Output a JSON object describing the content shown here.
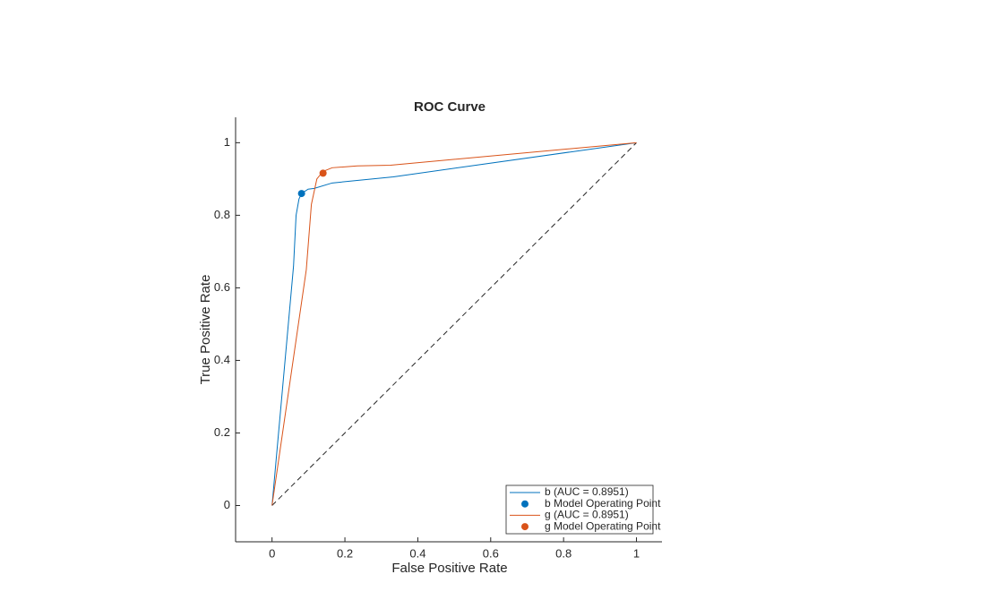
{
  "chart_data": {
    "type": "line",
    "title": "ROC Curve",
    "x_label": "False Positive Rate",
    "y_label": "True Positive Rate",
    "xlim": [
      -0.1,
      1.07
    ],
    "ylim": [
      -0.1,
      1.07
    ],
    "xticks": [
      0,
      0.2,
      0.4,
      0.6,
      0.8,
      1
    ],
    "yticks": [
      0,
      0.2,
      0.4,
      0.6,
      0.8,
      1
    ],
    "legend": "southeast",
    "series": [
      {
        "name": "b (AUC = 0.8951)",
        "color": "#0072bd",
        "x": [
          0,
          0.059,
          0.066,
          0.074,
          0.081,
          0.099,
          0.116,
          0.165,
          0.333,
          1
        ],
        "y": [
          0,
          0.66,
          0.8,
          0.845,
          0.86,
          0.872,
          0.874,
          0.889,
          0.906,
          1
        ]
      },
      {
        "name": "g (AUC = 0.8951)",
        "color": "#d95319",
        "x": [
          0,
          0.094,
          0.108,
          0.123,
          0.14,
          0.165,
          0.234,
          0.325,
          1
        ],
        "y": [
          0,
          0.65,
          0.83,
          0.9,
          0.921,
          0.931,
          0.936,
          0.938,
          1
        ]
      }
    ],
    "operating_points": [
      {
        "name": "b Model Operating Point",
        "color": "#0072bd",
        "x": 0.081,
        "y": 0.86
      },
      {
        "name": "g Model Operating Point",
        "color": "#d95319",
        "x": 0.14,
        "y": 0.916
      }
    ]
  }
}
